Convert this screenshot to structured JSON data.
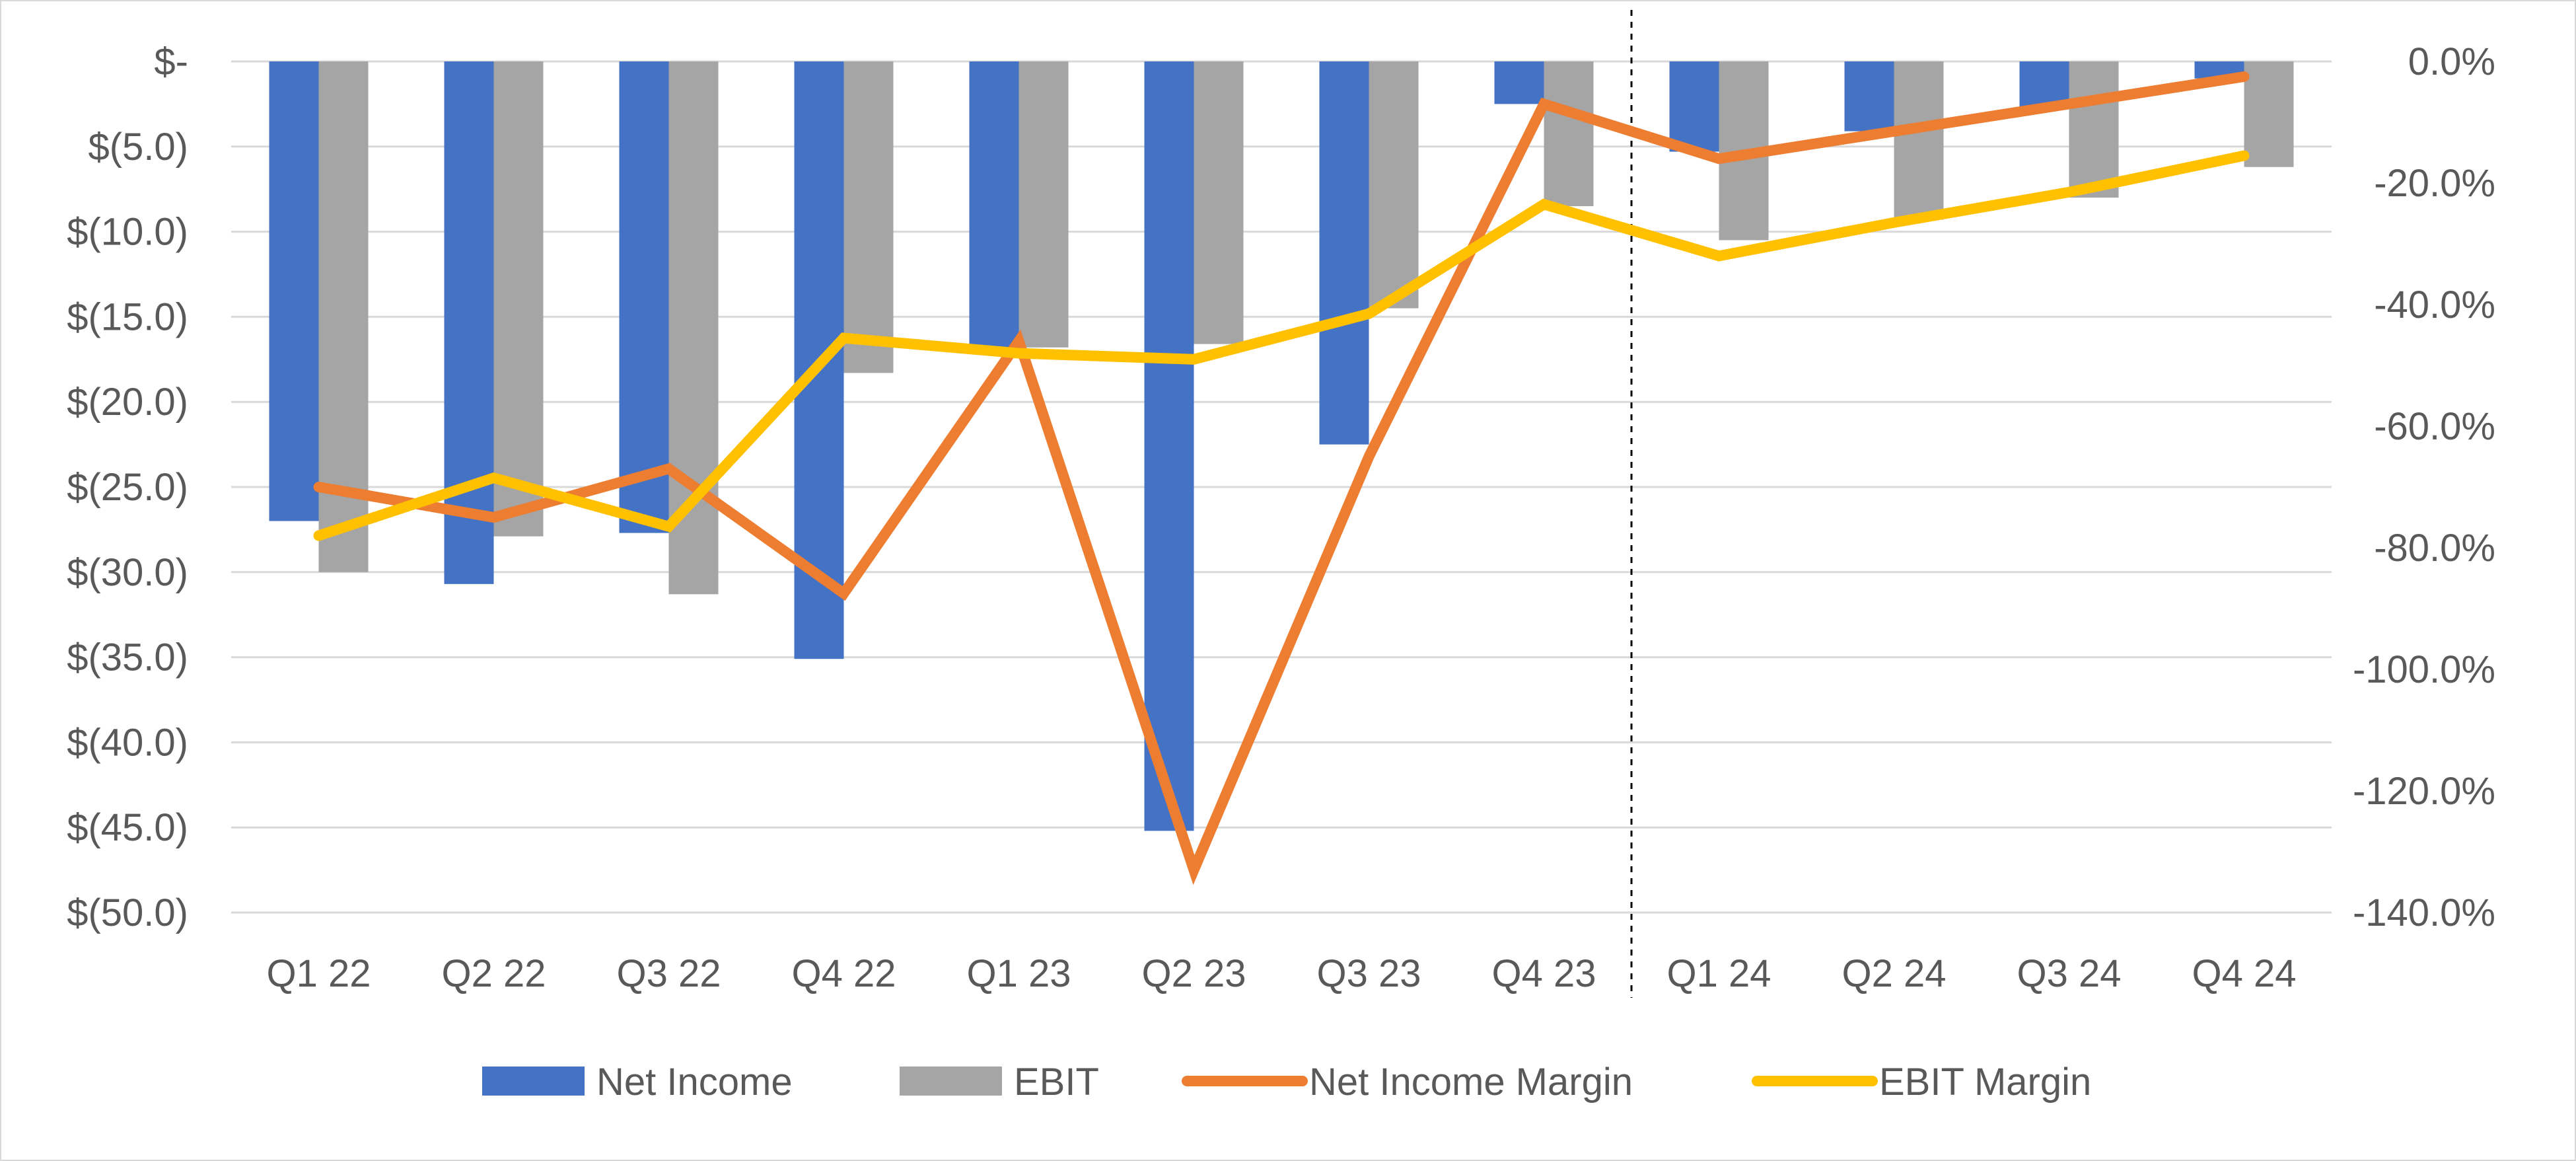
{
  "chart_data": {
    "type": "bar",
    "categories": [
      "Q1 22",
      "Q2 22",
      "Q3 22",
      "Q4 22",
      "Q1 23",
      "Q2 23",
      "Q3 23",
      "Q4 23",
      "Q1 24",
      "Q2 24",
      "Q3 24",
      "Q4 24"
    ],
    "y_left": {
      "ylim": [
        -50,
        0
      ],
      "ticks": [
        0,
        -5,
        -10,
        -15,
        -20,
        -25,
        -30,
        -35,
        -40,
        -45,
        -50
      ],
      "tick_labels": [
        "$-",
        "$(5.0)",
        "$(10.0)",
        "$(15.0)",
        "$(20.0)",
        "$(25.0)",
        "$(30.0)",
        "$(35.0)",
        "$(40.0)",
        "$(45.0)",
        "$(50.0)"
      ]
    },
    "y_right": {
      "ylim": [
        -140,
        0
      ],
      "ticks": [
        0,
        -20,
        -40,
        -60,
        -80,
        -100,
        -120,
        -140
      ],
      "tick_labels": [
        "0.0%",
        "-20.0%",
        "-40.0%",
        "-60.0%",
        "-80.0%",
        "-100.0%",
        "-120.0%",
        "-140.0%"
      ]
    },
    "grid": true,
    "legend_position": "bottom",
    "divider_after_category": "Q4 23",
    "series": [
      {
        "name": "Net Income",
        "type": "bar",
        "axis": "left",
        "color": "#4472c4",
        "values": [
          -27.0,
          -30.7,
          -27.7,
          -35.1,
          -16.8,
          -45.2,
          -22.5,
          -2.5,
          -5.3,
          -4.1,
          -2.8,
          -1.0
        ]
      },
      {
        "name": "EBIT",
        "type": "bar",
        "axis": "left",
        "color": "#a5a5a5",
        "values": [
          -30.0,
          -27.9,
          -31.3,
          -18.3,
          -16.8,
          -16.6,
          -14.5,
          -8.5,
          -10.5,
          -9.3,
          -8.0,
          -6.2
        ]
      },
      {
        "name": "Net Income Margin",
        "type": "line",
        "axis": "right",
        "color": "#ed7d31",
        "values": [
          -70.0,
          -75.0,
          -67.0,
          -87.5,
          -46.0,
          -133.0,
          -65.0,
          -7.0,
          -16.0,
          -11.5,
          -7.0,
          -2.5
        ]
      },
      {
        "name": "EBIT Margin",
        "type": "line",
        "axis": "right",
        "color": "#ffc000",
        "values": [
          -78.0,
          -68.5,
          -76.5,
          -45.5,
          -48.0,
          -49.0,
          -41.5,
          -23.5,
          -32.0,
          -26.5,
          -21.5,
          -15.5
        ]
      }
    ]
  }
}
